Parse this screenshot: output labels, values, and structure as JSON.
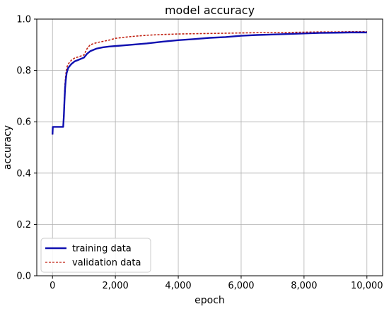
{
  "chart_data": {
    "type": "line",
    "title": "model accuracy",
    "xlabel": "epoch",
    "ylabel": "accuracy",
    "xlim": [
      -500,
      10500
    ],
    "ylim": [
      0.0,
      1.0
    ],
    "xticks": [
      0,
      2000,
      4000,
      6000,
      8000,
      10000
    ],
    "xtick_labels": [
      "0",
      "2,000",
      "4,000",
      "6,000",
      "8,000",
      "10,000"
    ],
    "yticks": [
      0.0,
      0.2,
      0.4,
      0.6,
      0.8,
      1.0
    ],
    "ytick_labels": [
      "0.0",
      "0.2",
      "0.4",
      "0.6",
      "0.8",
      "1.0"
    ],
    "grid": true,
    "legend_position": "lower-left",
    "series": [
      {
        "name": "training data",
        "color": "#1010b0",
        "style": "solid",
        "x": [
          0,
          10,
          50,
          100,
          200,
          300,
          340,
          360,
          380,
          400,
          420,
          450,
          500,
          600,
          700,
          800,
          900,
          1000,
          1100,
          1200,
          1400,
          1600,
          1800,
          2000,
          2500,
          3000,
          3500,
          4000,
          4500,
          5000,
          5500,
          6000,
          6500,
          7000,
          7500,
          8000,
          8500,
          9000,
          9500,
          10000
        ],
        "y": [
          0.55,
          0.58,
          0.58,
          0.58,
          0.58,
          0.58,
          0.58,
          0.62,
          0.68,
          0.73,
          0.76,
          0.79,
          0.81,
          0.825,
          0.835,
          0.84,
          0.845,
          0.85,
          0.865,
          0.875,
          0.885,
          0.89,
          0.893,
          0.895,
          0.9,
          0.905,
          0.912,
          0.918,
          0.922,
          0.927,
          0.93,
          0.935,
          0.938,
          0.94,
          0.942,
          0.944,
          0.946,
          0.947,
          0.948,
          0.948
        ]
      },
      {
        "name": "validation data",
        "color": "#c02010",
        "style": "dashed",
        "x": [
          0,
          10,
          50,
          100,
          200,
          300,
          340,
          360,
          380,
          400,
          420,
          450,
          500,
          600,
          700,
          800,
          900,
          1000,
          1100,
          1200,
          1400,
          1600,
          1800,
          2000,
          2500,
          3000,
          3500,
          4000,
          4500,
          5000,
          5500,
          6000,
          6500,
          7000,
          7500,
          8000,
          8500,
          9000,
          9500,
          10000
        ],
        "y": [
          0.55,
          0.58,
          0.58,
          0.58,
          0.58,
          0.58,
          0.58,
          0.63,
          0.7,
          0.75,
          0.78,
          0.81,
          0.825,
          0.84,
          0.848,
          0.852,
          0.856,
          0.86,
          0.885,
          0.9,
          0.908,
          0.913,
          0.918,
          0.925,
          0.932,
          0.937,
          0.94,
          0.942,
          0.943,
          0.944,
          0.945,
          0.946,
          0.947,
          0.947,
          0.948,
          0.949,
          0.95,
          0.95,
          0.951,
          0.951
        ]
      }
    ]
  }
}
